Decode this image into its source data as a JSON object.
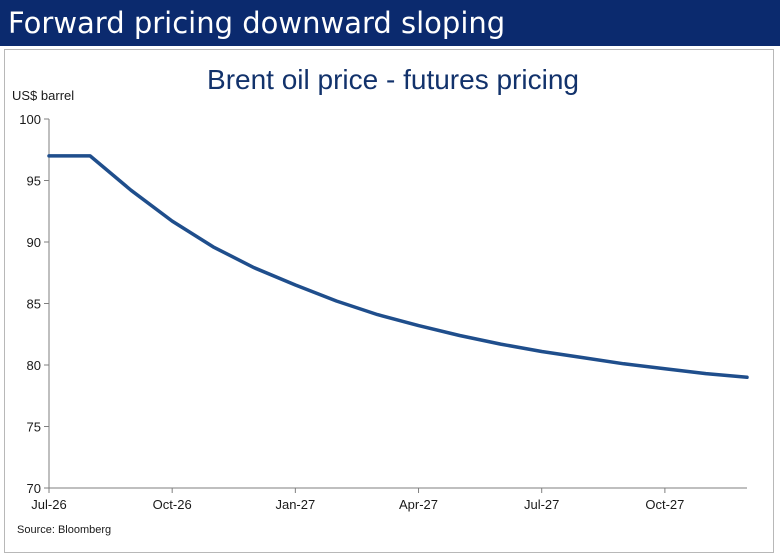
{
  "banner": {
    "title": "Forward pricing downward sloping",
    "color": "#0b2a6e"
  },
  "chart_data": {
    "type": "line",
    "title": "Brent oil price - futures pricing",
    "ylabel": "US$ barrel",
    "xlabel": "",
    "source": "Source: Bloomberg",
    "ylim": [
      70,
      100
    ],
    "yticks": [
      70,
      75,
      80,
      85,
      90,
      95,
      100
    ],
    "x_ticks": [
      "Jul-26",
      "Oct-26",
      "Jan-27",
      "Apr-27",
      "Jul-27",
      "Oct-27"
    ],
    "grid": false,
    "line_color": "#1f4e8c",
    "series": [
      {
        "x": [
          "Jul-26",
          "Aug-26",
          "Sep-26",
          "Oct-26",
          "Nov-26",
          "Dec-26",
          "Jan-27",
          "Feb-27",
          "Mar-27",
          "Apr-27",
          "May-27",
          "Jun-27",
          "Jul-27",
          "Aug-27",
          "Sep-27",
          "Oct-27",
          "Nov-27",
          "Dec-27"
        ],
        "values": [
          97.0,
          97.0,
          94.2,
          91.7,
          89.6,
          87.9,
          86.5,
          85.2,
          84.1,
          83.2,
          82.4,
          81.7,
          81.1,
          80.6,
          80.1,
          79.7,
          79.3,
          79.0
        ]
      }
    ]
  }
}
